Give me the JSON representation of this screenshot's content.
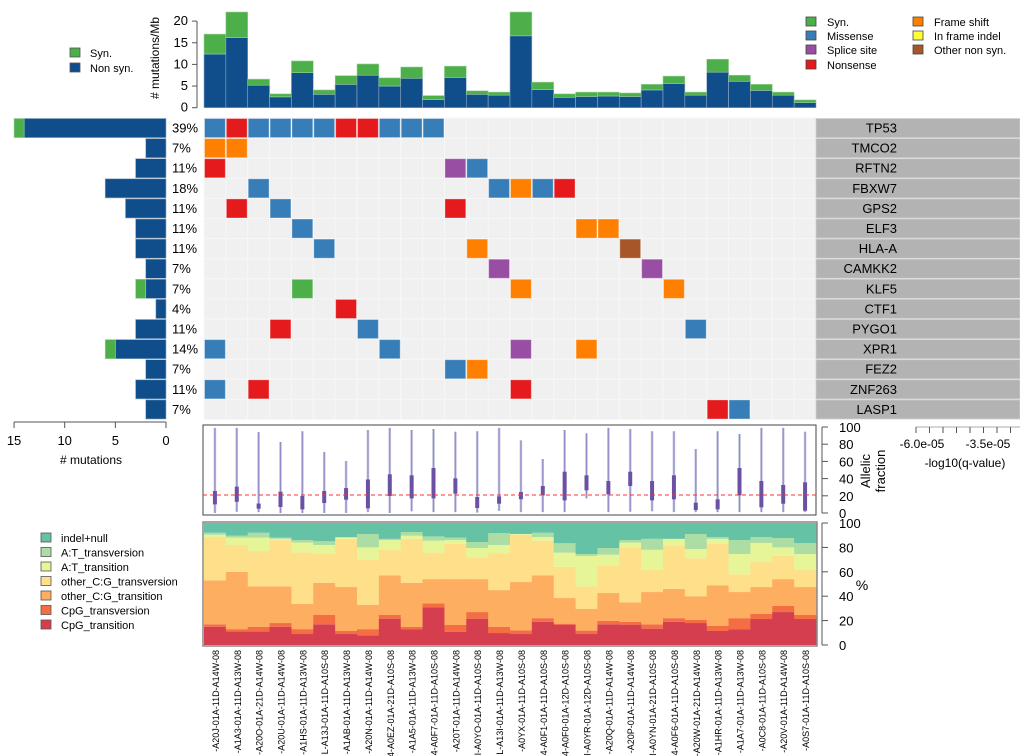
{
  "chart_data": [
    {
      "type": "bar",
      "id": "tmb",
      "title": "",
      "ylabel": "# mutations/Mb",
      "ylim": [
        0,
        22
      ],
      "yticks": [
        0,
        5,
        10,
        15,
        20
      ],
      "legend": {
        "position": "left",
        "items": [
          {
            "label": "Syn.",
            "color": "#4DAF4A"
          },
          {
            "label": "Non syn.",
            "color": "#0F4D8A"
          }
        ]
      },
      "series": [
        {
          "name": "Non syn.",
          "color": "#104E8B",
          "values": [
            12.4,
            16.2,
            5.2,
            2.5,
            8.1,
            3.1,
            5.4,
            7.5,
            5.0,
            6.8,
            1.9,
            7.0,
            3.1,
            2.9,
            16.6,
            4.2,
            2.4,
            2.6,
            2.7,
            2.6,
            4.1,
            5.6,
            2.9,
            8.2,
            6.1,
            4.0,
            2.9,
            1.2
          ]
        },
        {
          "name": "Syn.",
          "color": "#4DAF4A",
          "values": [
            4.6,
            5.9,
            1.4,
            0.7,
            2.7,
            1.0,
            2.0,
            2.6,
            1.9,
            2.6,
            0.9,
            2.6,
            0.8,
            0.7,
            5.5,
            1.7,
            0.8,
            1.0,
            0.9,
            0.8,
            1.3,
            1.7,
            0.7,
            3.0,
            1.4,
            1.4,
            0.7,
            0.6
          ]
        }
      ]
    },
    {
      "type": "heatmap",
      "id": "oncoprint",
      "genes": [
        "TP53",
        "TMCO2",
        "RFTN2",
        "FBXW7",
        "GPS2",
        "ELF3",
        "HLA-A",
        "CAMKK2",
        "KLF5",
        "CTF1",
        "PYGO1",
        "XPR1",
        "FEZ2",
        "ZNF263",
        "LASP1"
      ],
      "percent_labels": [
        "39%",
        "7%",
        "11%",
        "18%",
        "11%",
        "11%",
        "11%",
        "7%",
        "7%",
        "4%",
        "11%",
        "14%",
        "7%",
        "11%",
        "7%"
      ],
      "background_color": "#F0F0F0",
      "legend": {
        "position": "top-right",
        "items": [
          {
            "code": "Y",
            "label": "Syn.",
            "color": "#4DAF4A"
          },
          {
            "code": "M",
            "label": "Missense",
            "color": "#377EB8"
          },
          {
            "code": "S",
            "label": "Splice site",
            "color": "#984EA3"
          },
          {
            "code": "N",
            "label": "Nonsense",
            "color": "#E41A1C"
          },
          {
            "code": "F",
            "label": "Frame shift",
            "color": "#FF7F00"
          },
          {
            "code": "I",
            "label": "In frame indel",
            "color": "#FFFF33"
          },
          {
            "code": "O",
            "label": "Other non syn.",
            "color": "#A65628"
          }
        ]
      },
      "cells": [
        {
          "gene": "TP53",
          "sample": 0,
          "type": "M"
        },
        {
          "gene": "TP53",
          "sample": 1,
          "type": "N"
        },
        {
          "gene": "TP53",
          "sample": 2,
          "type": "M"
        },
        {
          "gene": "TP53",
          "sample": 3,
          "type": "M"
        },
        {
          "gene": "TP53",
          "sample": 4,
          "type": "M"
        },
        {
          "gene": "TP53",
          "sample": 5,
          "type": "M"
        },
        {
          "gene": "TP53",
          "sample": 6,
          "type": "N"
        },
        {
          "gene": "TP53",
          "sample": 7,
          "type": "N"
        },
        {
          "gene": "TP53",
          "sample": 8,
          "type": "M"
        },
        {
          "gene": "TP53",
          "sample": 9,
          "type": "M"
        },
        {
          "gene": "TP53",
          "sample": 10,
          "type": "M"
        },
        {
          "gene": "TMCO2",
          "sample": 0,
          "type": "F"
        },
        {
          "gene": "TMCO2",
          "sample": 1,
          "type": "F"
        },
        {
          "gene": "RFTN2",
          "sample": 0,
          "type": "N"
        },
        {
          "gene": "RFTN2",
          "sample": 11,
          "type": "S"
        },
        {
          "gene": "RFTN2",
          "sample": 12,
          "type": "M"
        },
        {
          "gene": "FBXW7",
          "sample": 2,
          "type": "M"
        },
        {
          "gene": "FBXW7",
          "sample": 13,
          "type": "M"
        },
        {
          "gene": "FBXW7",
          "sample": 14,
          "type": "F"
        },
        {
          "gene": "FBXW7",
          "sample": 15,
          "type": "M"
        },
        {
          "gene": "FBXW7",
          "sample": 16,
          "type": "N"
        },
        {
          "gene": "GPS2",
          "sample": 1,
          "type": "N"
        },
        {
          "gene": "GPS2",
          "sample": 3,
          "type": "M"
        },
        {
          "gene": "GPS2",
          "sample": 11,
          "type": "N"
        },
        {
          "gene": "ELF3",
          "sample": 4,
          "type": "M"
        },
        {
          "gene": "ELF3",
          "sample": 17,
          "type": "F"
        },
        {
          "gene": "ELF3",
          "sample": 18,
          "type": "F"
        },
        {
          "gene": "HLA-A",
          "sample": 5,
          "type": "M"
        },
        {
          "gene": "HLA-A",
          "sample": 12,
          "type": "F"
        },
        {
          "gene": "HLA-A",
          "sample": 19,
          "type": "O"
        },
        {
          "gene": "CAMKK2",
          "sample": 13,
          "type": "S"
        },
        {
          "gene": "CAMKK2",
          "sample": 20,
          "type": "S"
        },
        {
          "gene": "KLF5",
          "sample": 4,
          "type": "Y"
        },
        {
          "gene": "KLF5",
          "sample": 14,
          "type": "F"
        },
        {
          "gene": "KLF5",
          "sample": 21,
          "type": "F"
        },
        {
          "gene": "CTF1",
          "sample": 6,
          "type": "N"
        },
        {
          "gene": "PYGO1",
          "sample": 3,
          "type": "N"
        },
        {
          "gene": "PYGO1",
          "sample": 7,
          "type": "M"
        },
        {
          "gene": "PYGO1",
          "sample": 22,
          "type": "M"
        },
        {
          "gene": "XPR1",
          "sample": 0,
          "type": "M"
        },
        {
          "gene": "XPR1",
          "sample": 8,
          "type": "M"
        },
        {
          "gene": "XPR1",
          "sample": 14,
          "type": "S"
        },
        {
          "gene": "XPR1",
          "sample": 17,
          "type": "F"
        },
        {
          "gene": "FEZ2",
          "sample": 11,
          "type": "M"
        },
        {
          "gene": "FEZ2",
          "sample": 12,
          "type": "F"
        },
        {
          "gene": "ZNF263",
          "sample": 0,
          "type": "M"
        },
        {
          "gene": "ZNF263",
          "sample": 2,
          "type": "N"
        },
        {
          "gene": "ZNF263",
          "sample": 14,
          "type": "N"
        },
        {
          "gene": "LASP1",
          "sample": 23,
          "type": "N"
        },
        {
          "gene": "LASP1",
          "sample": 24,
          "type": "M"
        }
      ]
    },
    {
      "type": "bar",
      "id": "gene-counts",
      "orientation": "horizontal",
      "xlabel": "# mutations",
      "xlim": [
        15,
        0
      ],
      "xticks": [
        15,
        10,
        5,
        0
      ],
      "series": [
        {
          "name": "Non syn.",
          "color": "#104E8B",
          "values": [
            14,
            2,
            3,
            6,
            4,
            3,
            3,
            2,
            2,
            1,
            3,
            5,
            2,
            3,
            2
          ]
        },
        {
          "name": "Syn.",
          "color": "#4DAF4A",
          "values": [
            1,
            0,
            0,
            0,
            0,
            0,
            0,
            0,
            1,
            0,
            0,
            1,
            0,
            0,
            0
          ]
        }
      ]
    },
    {
      "type": "bar",
      "id": "qvalue",
      "orientation": "horizontal",
      "xlabel": "-log10(q-value)",
      "xticks_labels": [
        "-6.0e-05",
        "-3.5e-05"
      ],
      "bar_color": "#B3B3B3",
      "values_note": "all genes equal (bars fill panel)"
    },
    {
      "type": "scatter",
      "id": "allelic-fraction",
      "ylabel": "Allelic\nfraction",
      "ylim": [
        0,
        100
      ],
      "yticks": [
        0,
        20,
        40,
        60,
        80,
        100
      ],
      "median_line": 21,
      "box_color": "#6A51A3",
      "whisker_color": "#BCBDDC",
      "boxes": [
        {
          "min": 0,
          "q1": 10,
          "q3": 25.6,
          "max": 99
        },
        {
          "min": 1.5,
          "q1": 13,
          "q3": 30.6,
          "max": 99
        },
        {
          "min": 1,
          "q1": 5,
          "q3": 11,
          "max": 94
        },
        {
          "min": 0,
          "q1": 7,
          "q3": 24.8,
          "max": 82.5
        },
        {
          "min": 0,
          "q1": 4.3,
          "q3": 19.8,
          "max": 95
        },
        {
          "min": 0,
          "q1": 11.6,
          "q3": 25.6,
          "max": 71
        },
        {
          "min": 0,
          "q1": 15.5,
          "q3": 29,
          "max": 60.5
        },
        {
          "min": 1,
          "q1": 5.4,
          "q3": 39,
          "max": 96.5
        },
        {
          "min": 0,
          "q1": 19.8,
          "q3": 45,
          "max": 99
        },
        {
          "min": 2,
          "q1": 17,
          "q3": 43.8,
          "max": 96.5
        },
        {
          "min": 1,
          "q1": 17,
          "q3": 52.3,
          "max": 97.7
        },
        {
          "min": 1,
          "q1": 22.5,
          "q3": 40.3,
          "max": 94.5
        },
        {
          "min": 0.5,
          "q1": 5.8,
          "q3": 18.6,
          "max": 95
        },
        {
          "min": 2.5,
          "q1": 10.8,
          "q3": 19.4,
          "max": 99
        },
        {
          "min": 1,
          "q1": 16,
          "q3": 24.4,
          "max": 84.5
        },
        {
          "min": 1,
          "q1": 20.5,
          "q3": 31.4,
          "max": 62.8
        },
        {
          "min": 1,
          "q1": 14.7,
          "q3": 48,
          "max": 96.5
        },
        {
          "min": 17,
          "q1": 26.4,
          "q3": 43.8,
          "max": 92.6
        },
        {
          "min": 1,
          "q1": 21.7,
          "q3": 37.2,
          "max": 99
        },
        {
          "min": 1.5,
          "q1": 31.4,
          "q3": 48,
          "max": 97.7
        },
        {
          "min": 2,
          "q1": 14.7,
          "q3": 37.2,
          "max": 95
        },
        {
          "min": 1,
          "q1": 15.9,
          "q3": 43.8,
          "max": 95
        },
        {
          "min": 1,
          "q1": 3.5,
          "q3": 12,
          "max": 74.4
        },
        {
          "min": 1,
          "q1": 4.3,
          "q3": 15.9,
          "max": 95
        },
        {
          "min": 1,
          "q1": 20.5,
          "q3": 52.3,
          "max": 91.9
        },
        {
          "min": 1,
          "q1": 6.6,
          "q3": 37.2,
          "max": 99
        },
        {
          "min": 1,
          "q1": 10.8,
          "q3": 32.6,
          "max": 99
        },
        {
          "min": 1,
          "q1": 2.7,
          "q3": 35.7,
          "max": 94.5
        }
      ]
    },
    {
      "type": "area",
      "id": "mutation-spectrum",
      "ylabel": "%",
      "ylim": [
        0,
        100
      ],
      "yticks": [
        0,
        20,
        40,
        60,
        80,
        100
      ],
      "legend_position": "left",
      "classes": [
        {
          "name": "CpG_transition",
          "color": "#D53E4F"
        },
        {
          "name": "CpG_transversion",
          "color": "#F46D43"
        },
        {
          "name": "other_C:G_transition",
          "color": "#FDAE61"
        },
        {
          "name": "other_C:G_transversion",
          "color": "#FEE08B"
        },
        {
          "name": "A:T_transition",
          "color": "#E6F598"
        },
        {
          "name": "A:T_transversion",
          "color": "#ABDDA4"
        },
        {
          "name": "indel+null",
          "color": "#66C2A5"
        }
      ],
      "legend_order": [
        "indel+null",
        "A:T_transversion",
        "A:T_transition",
        "other_C:G_transversion",
        "other_C:G_transition",
        "CpG_transversion",
        "CpG_transition"
      ],
      "cumulative_percent": [
        [
          15,
          17,
          53,
          88.5,
          90.4,
          92,
          100
        ],
        [
          11,
          13,
          60,
          82,
          88,
          89.6,
          100
        ],
        [
          11,
          14.8,
          48,
          77,
          88,
          92,
          100
        ],
        [
          15,
          18,
          48,
          86,
          87,
          88,
          100
        ],
        [
          9,
          13,
          33.6,
          76,
          84,
          86,
          100
        ],
        [
          17,
          24.6,
          51,
          74.6,
          82,
          85,
          100
        ],
        [
          9,
          11.5,
          47.5,
          87,
          88,
          88.5,
          100
        ],
        [
          8,
          13,
          33,
          70,
          80,
          91,
          100
        ],
        [
          21.6,
          24.6,
          57,
          78,
          86,
          87,
          100
        ],
        [
          13,
          14.8,
          51,
          87,
          89.6,
          92.6,
          100
        ],
        [
          31,
          34,
          54,
          75.7,
          85.5,
          89,
          100
        ],
        [
          10.7,
          16.4,
          54,
          83,
          86,
          88,
          100
        ],
        [
          21.6,
          27,
          54,
          72,
          79.5,
          84.4,
          100
        ],
        [
          9.8,
          14.8,
          45,
          75,
          82,
          91.8,
          100
        ],
        [
          9,
          12,
          51.6,
          90.4,
          91,
          91,
          100
        ],
        [
          18.9,
          22,
          57,
          85.5,
          88.5,
          92,
          100
        ],
        [
          16.7,
          17.5,
          38.5,
          64,
          75.7,
          83.4,
          100
        ],
        [
          9,
          11.8,
          29.5,
          48,
          73,
          74.6,
          100
        ],
        [
          17,
          19.7,
          42.6,
          65,
          74,
          79.5,
          100
        ],
        [
          16.7,
          18.9,
          35,
          80,
          84,
          86,
          100
        ],
        [
          13.4,
          17,
          43.4,
          61.5,
          78,
          87,
          100
        ],
        [
          18.9,
          22,
          46,
          81.4,
          87,
          87,
          100
        ],
        [
          18,
          20.5,
          40,
          71,
          78.7,
          91,
          100
        ],
        [
          11.5,
          15.6,
          49,
          82.8,
          87,
          88.5,
          100
        ],
        [
          13,
          22,
          43.4,
          58,
          74.6,
          86,
          100
        ],
        [
          21.3,
          25.4,
          47.5,
          68,
          83.6,
          88.5,
          100
        ],
        [
          27,
          32,
          54,
          73,
          80,
          87.7,
          100
        ],
        [
          21.3,
          24.6,
          47.5,
          62,
          74.6,
          83.6,
          100
        ]
      ]
    }
  ],
  "samples": [
    "-A20J-01A-11D-A14W-08",
    "-A1A3-01A-11D-A13W-08",
    "-A20O-01A-21D-A14W-08",
    "-A20U-01A-11D-A14W-08",
    "-A1HS-01A-11D-A13W-08",
    "L-A13J-01A-11D-A10S-08",
    "-A1AB-01A-11D-A13W-08",
    "-A20N-01A-11D-A14W-08",
    "4-A0EZ-01A-21D-A10S-08",
    "-A1A5-01A-11D-A13W-08",
    "4-A0F7-01A-11D-A10S-08",
    "-A20T-01A-11D-A14W-08",
    "I-A0YO-01A-11D-A10S-08",
    "L-A13I-01A-11D-A13W-08",
    "-A0YX-01A-11D-A10S-08",
    "4-A0F1-01A-11D-A10S-08",
    "4-A0F0-01A-12D-A10S-08",
    "I-A0YR-01A-12D-A10S-08",
    "-A20Q-01A-11D-A14W-08",
    "-A20P-01A-11D-A14W-08",
    "I-A0YN-01A-21D-A10S-08",
    "4-A0F6-01A-11D-A10S-08",
    "-A20W-01A-21D-A14W-08",
    "-A1HR-01A-11D-A13W-08",
    "-A1A7-01A-11D-A13W-08",
    "-A0C8-01A-11D-A10S-08",
    "-A20V-01A-11D-A14W-08",
    "-A0S7-01A-11D-A10S-08"
  ]
}
